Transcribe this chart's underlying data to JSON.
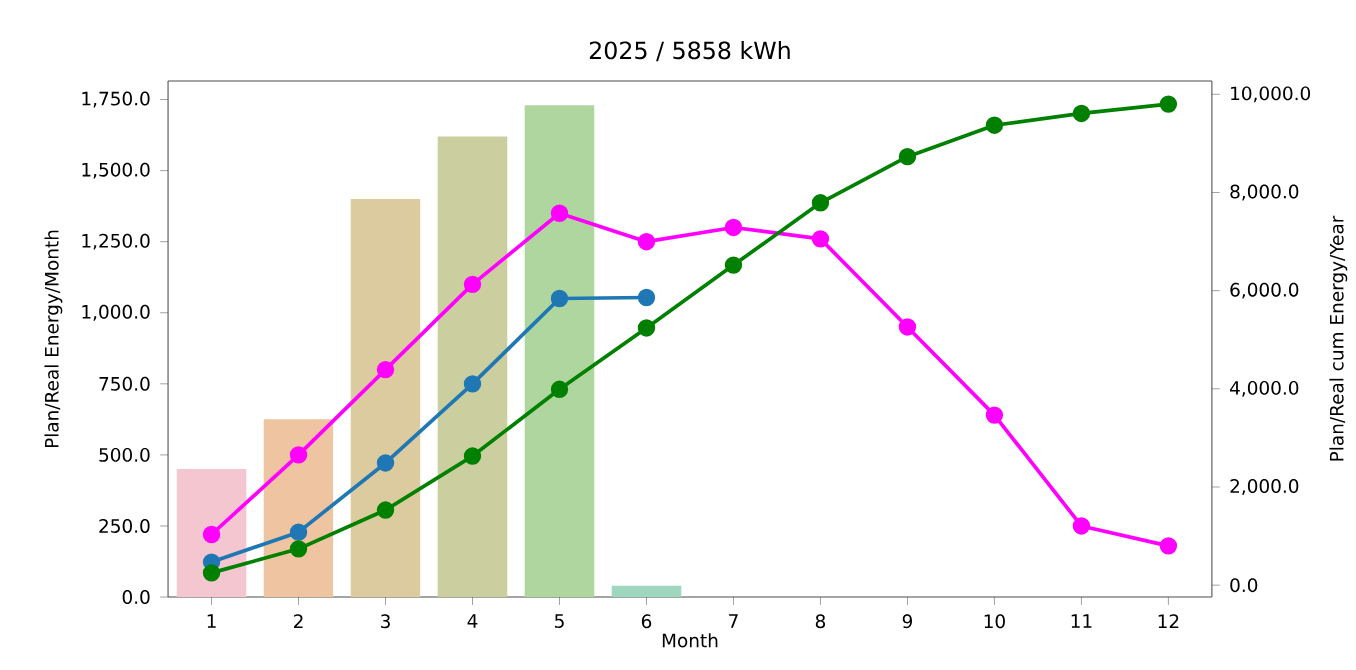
{
  "chart_data": {
    "type": "bar",
    "title": "2025 / 5858 kWh",
    "xlabel": "Month",
    "ylabel": "Plan/Real Energy/Month",
    "y2label": "Plan/Real cum Energy/Year",
    "categories": [
      "1",
      "2",
      "3",
      "4",
      "5",
      "6",
      "7",
      "8",
      "9",
      "10",
      "11",
      "12"
    ],
    "ylim": [
      0,
      1815
    ],
    "yticks": [
      {
        "value": 0,
        "label": "0.0"
      },
      {
        "value": 250,
        "label": "250.0"
      },
      {
        "value": 500,
        "label": "500.0"
      },
      {
        "value": 750,
        "label": "750.0"
      },
      {
        "value": 1000,
        "label": "1,000.0"
      },
      {
        "value": 1250,
        "label": "1,250.0"
      },
      {
        "value": 1500,
        "label": "1,500.0"
      },
      {
        "value": 1750,
        "label": "1,750.0"
      }
    ],
    "y2lim": [
      -242,
      10270
    ],
    "y2ticks": [
      {
        "value": 0,
        "label": "0.0"
      },
      {
        "value": 2000,
        "label": "2,000.0"
      },
      {
        "value": 4000,
        "label": "4,000.0"
      },
      {
        "value": 6000,
        "label": "6,000.0"
      },
      {
        "value": 8000,
        "label": "8,000.0"
      },
      {
        "value": 10000,
        "label": "10,000.0"
      }
    ],
    "grid": false,
    "marker": "circle",
    "series": [
      {
        "colors": [
          "#f4c6cf",
          "#efc4a0",
          "#dccb9e",
          "#cbcf9f",
          "#b0d6a0",
          "#9fd6c0",
          null,
          null,
          null,
          null,
          null,
          null
        ],
        "values": [
          450,
          625,
          1400,
          1620,
          1730,
          40,
          null,
          null,
          null,
          null,
          null,
          null
        ]
      },
      {
        "type": "line",
        "color": "#ff00ff",
        "values": [
          220,
          500,
          800,
          1100,
          1350,
          1250,
          1300,
          1260,
          950,
          640,
          250,
          180
        ]
      },
      {
        "type": "line",
        "axis": "y2",
        "color": "#1f77b4",
        "values": [
          470,
          1080,
          2490,
          4100,
          5840,
          5860,
          null,
          null,
          null,
          null,
          null,
          null
        ]
      },
      {
        "type": "line",
        "axis": "y2",
        "color": "#008000",
        "values": [
          250,
          740,
          1530,
          2630,
          3990,
          5240,
          6520,
          7790,
          8730,
          9370,
          9610,
          9800
        ]
      }
    ]
  }
}
